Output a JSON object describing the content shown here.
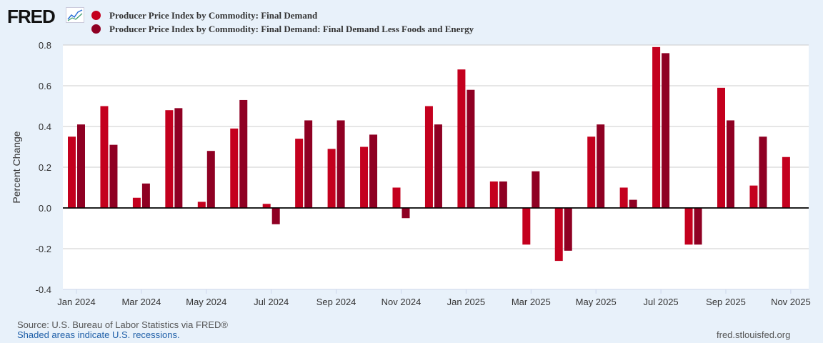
{
  "logo": "FRED",
  "chart_data": {
    "type": "bar",
    "categories": [
      "Jan 2024",
      "Feb 2024",
      "Mar 2024",
      "Apr 2024",
      "May 2024",
      "Jun 2024",
      "Jul 2024",
      "Aug 2024",
      "Sep 2024",
      "Oct 2024",
      "Nov 2024",
      "Dec 2024",
      "Jan 2025",
      "Feb 2025",
      "Mar 2025",
      "Apr 2025",
      "May 2025",
      "Jun 2025",
      "Jul 2025",
      "Aug 2025",
      "Sep 2025",
      "Oct 2025",
      "Nov 2025"
    ],
    "series": [
      {
        "name": "Producer Price Index by Commodity: Final Demand",
        "color": "#c4001e",
        "values": [
          0.35,
          0.5,
          0.05,
          0.48,
          0.03,
          0.39,
          0.02,
          0.34,
          0.29,
          0.3,
          0.1,
          0.5,
          0.68,
          0.13,
          -0.18,
          -0.26,
          0.35,
          0.1,
          0.79,
          -0.18,
          0.59,
          0.11,
          0.25
        ]
      },
      {
        "name": "Producer Price Index by Commodity: Final Demand: Final Demand Less Foods and Energy",
        "color": "#8f0023",
        "values": [
          0.41,
          0.31,
          0.12,
          0.49,
          0.28,
          0.53,
          -0.08,
          0.43,
          0.43,
          0.36,
          -0.05,
          0.41,
          0.58,
          0.13,
          0.18,
          -0.21,
          0.41,
          0.04,
          0.76,
          -0.18,
          0.43,
          0.35,
          null
        ]
      }
    ],
    "ylabel": "Percent Change",
    "ylim": [
      -0.4,
      0.8
    ],
    "yticks": [
      "0.8",
      "0.6",
      "0.4",
      "0.2",
      "0.0",
      "-0.2",
      "-0.4"
    ],
    "xticks": [
      "Jan 2024",
      "Mar 2024",
      "May 2024",
      "Jul 2024",
      "Sep 2024",
      "Nov 2024",
      "Jan 2025",
      "Mar 2025",
      "May 2025",
      "Jul 2025",
      "Sep 2025",
      "Nov 2025"
    ],
    "grid": true,
    "legend": "top"
  },
  "footer": {
    "source": "Source: U.S. Bureau of Labor Statistics via FRED®",
    "recessions": "Shaded areas indicate U.S. recessions.",
    "site": "fred.stlouisfed.org"
  }
}
